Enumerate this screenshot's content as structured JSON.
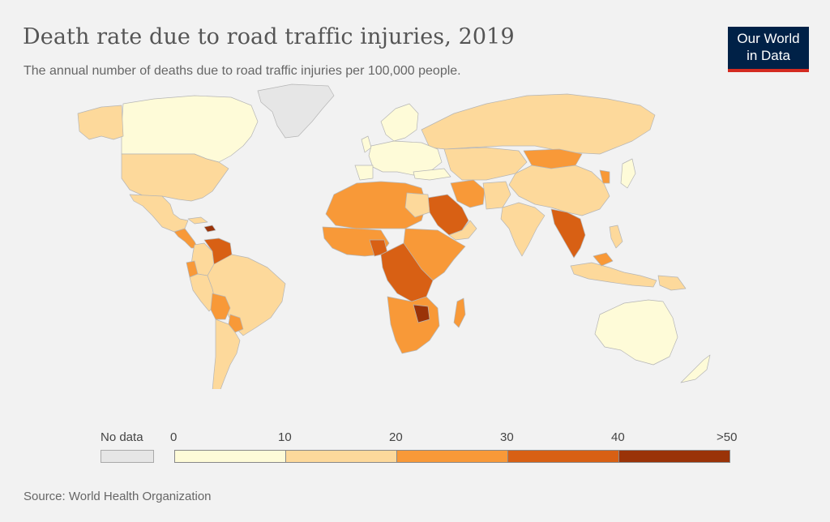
{
  "title": "Death rate due to road traffic injuries, 2019",
  "subtitle": "The annual number of deaths due to road traffic injuries per 100,000 people.",
  "logo": {
    "line1": "Our World",
    "line2": "in Data"
  },
  "legend": {
    "no_data_label": "No data",
    "no_data_color": "#e6e6e6",
    "bins": [
      {
        "from": "0",
        "to": "10",
        "color": "#fefbd8"
      },
      {
        "from": "10",
        "to": "20",
        "color": "#fdd99b"
      },
      {
        "from": "20",
        "to": "30",
        "color": "#f89938"
      },
      {
        "from": "30",
        "to": "40",
        "color": "#d86014"
      },
      {
        "from": "40",
        "to": ">50",
        "color": "#9a3308"
      }
    ],
    "tick_labels": [
      "0",
      "10",
      "20",
      "30",
      "40",
      ">50"
    ]
  },
  "source": "Source: World Health Organization",
  "map_colors": {
    "ocean": "#f2f2f2",
    "border": "#b5b5b5",
    "no_data": "#e6e6e6"
  }
}
